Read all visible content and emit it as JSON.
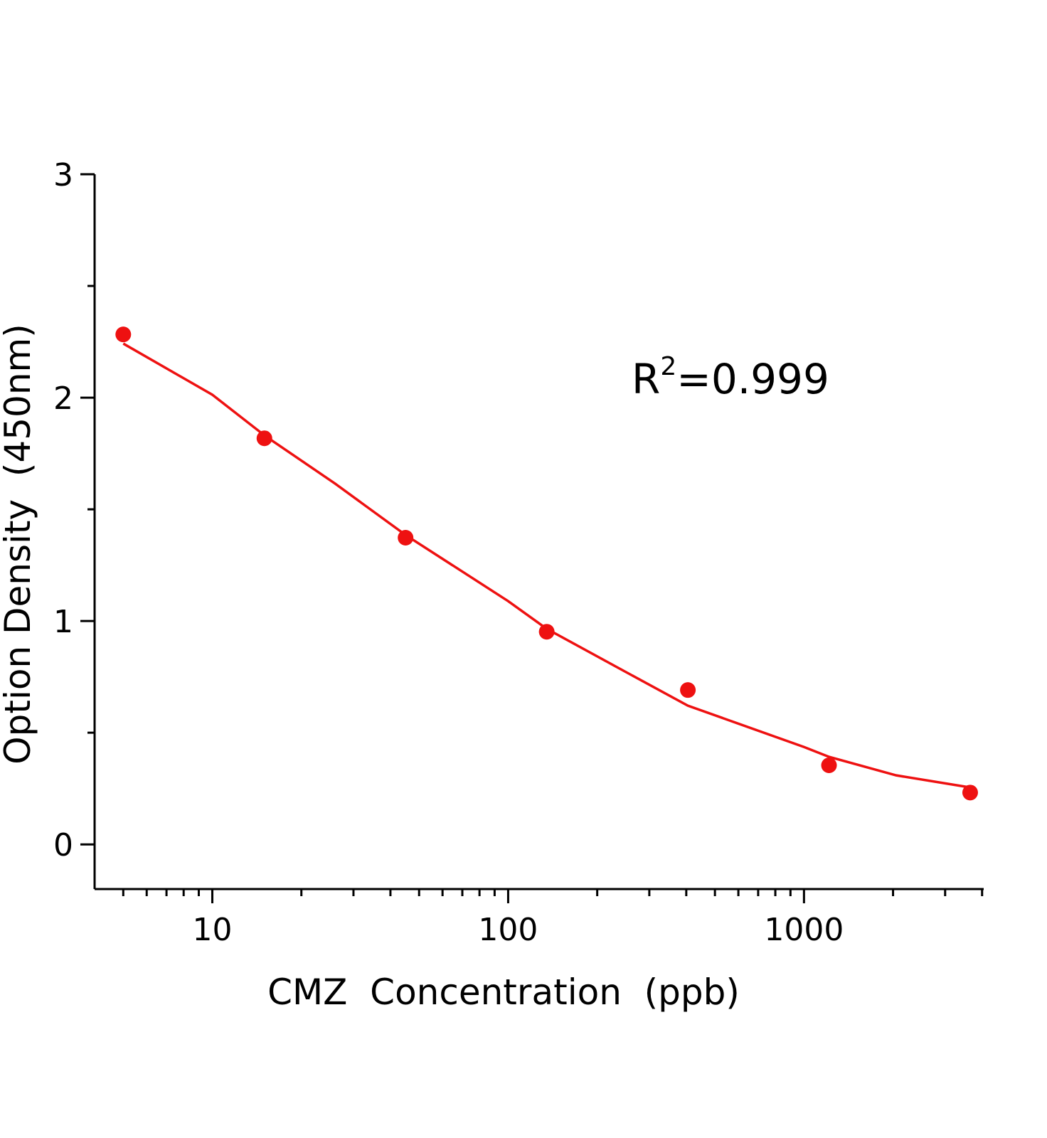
{
  "chart_data": {
    "type": "scatter",
    "xlabel": "CMZ  Concentration  (ppb)",
    "ylabel": "Option Density  (450nm)",
    "annotation": [
      "R",
      "2",
      "=0.999"
    ],
    "xscale": "log",
    "xlim": [
      4,
      4050
    ],
    "ylim": [
      -0.2,
      3
    ],
    "xticks": [
      10,
      100,
      1000
    ],
    "xminorticks": [
      5,
      6,
      7,
      8,
      9,
      20,
      30,
      40,
      50,
      60,
      70,
      80,
      90,
      200,
      300,
      400,
      500,
      600,
      700,
      800,
      900,
      2000,
      3000,
      4000
    ],
    "yticks": [
      0,
      1,
      2,
      3
    ],
    "yminorticks": [
      0.5,
      1.5,
      2.5
    ],
    "series": [
      {
        "kind": "points",
        "color": "#ee1111",
        "x": [
          5,
          15,
          45,
          135,
          405,
          1215,
          3645
        ],
        "values": [
          2.283,
          1.818,
          1.373,
          0.952,
          0.691,
          0.354,
          0.232
        ]
      },
      {
        "kind": "curve",
        "color": "#ee1111",
        "x": [
          5,
          10,
          15,
          26,
          45,
          100,
          135,
          238,
          405,
          1000,
          1215,
          2050,
          3645
        ],
        "values": [
          2.242,
          2.013,
          1.831,
          1.615,
          1.385,
          1.089,
          0.965,
          0.787,
          0.621,
          0.436,
          0.392,
          0.309,
          0.255
        ]
      }
    ]
  }
}
